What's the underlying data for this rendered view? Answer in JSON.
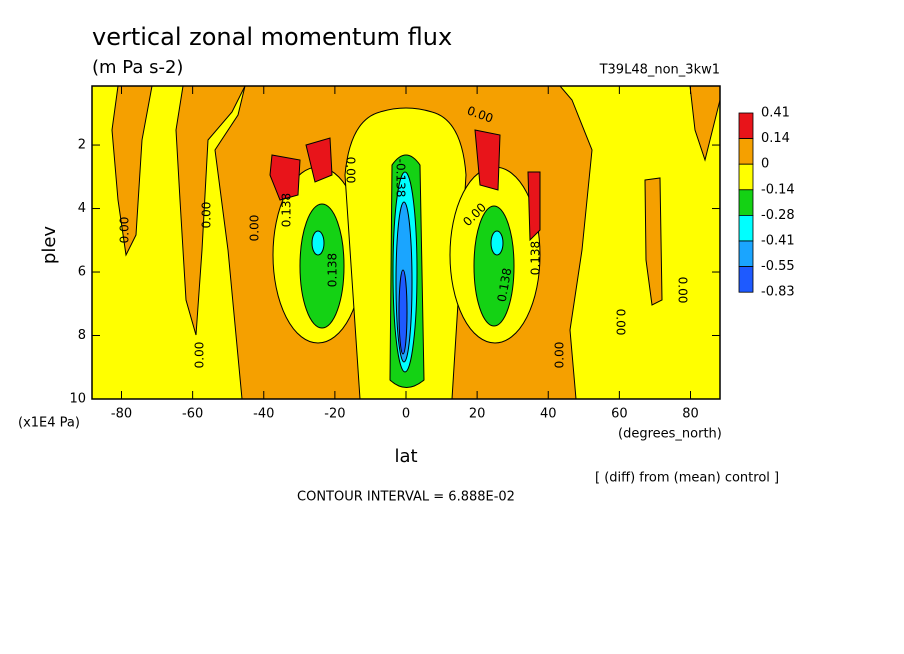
{
  "chart_data": {
    "type": "contour",
    "title": "vertical zonal momentum flux",
    "subtitle": "(m Pa s-2)",
    "dataset": "T39L48_non_3kw1",
    "x_label": "lat",
    "x_units": "(degrees_north)",
    "y_label": "plev",
    "y_units": "(x1E4 Pa)",
    "note": "[ (diff) from (mean) control ]",
    "contour_interval": "CONTOUR INTERVAL = 6.888E-02",
    "xlim": [
      -88.3,
      88.3
    ],
    "xticks": [
      -80,
      -60,
      -40,
      -20,
      0,
      20,
      40,
      60,
      80
    ],
    "ylim": [
      10,
      0.14
    ],
    "yticks": [
      2,
      4,
      6,
      8,
      10
    ],
    "levels": [
      0.41,
      0.14,
      0,
      -0.14,
      -0.28,
      -0.41,
      -0.55,
      -0.83
    ],
    "colors": [
      "#e8141a",
      "#f5a000",
      "#ffff00",
      "#14d214",
      "#00ffff",
      "#1aa5ff",
      "#1e5aff"
    ],
    "contour_labels": [
      "0.00",
      "0.00",
      "0.00",
      "0.00",
      "0.138",
      "0.138",
      "0.00",
      "-0.138",
      "0.00",
      "0.00",
      "0.138",
      "0.138",
      "0.00",
      "0.00",
      "0.00"
    ]
  }
}
